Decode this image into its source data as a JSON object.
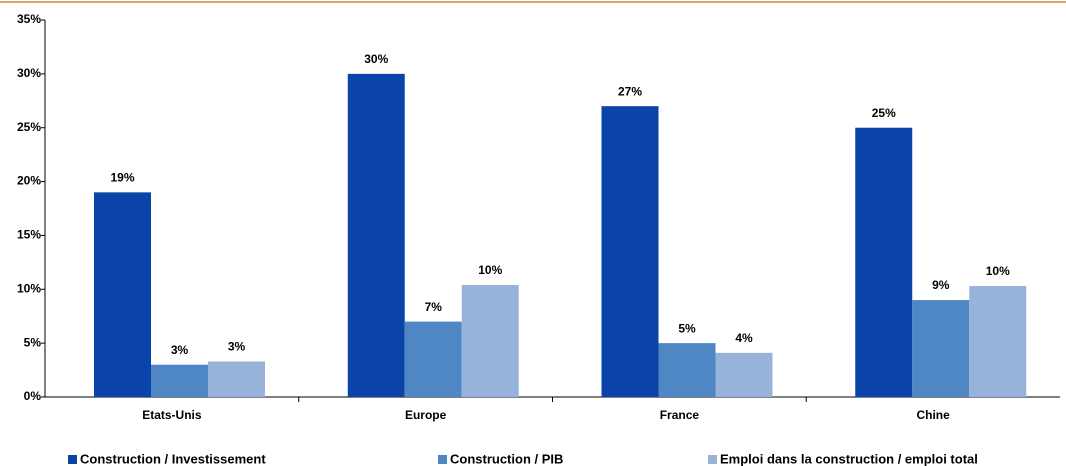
{
  "chart_data": {
    "type": "bar",
    "categories": [
      "Etats-Unis",
      "Europe",
      "France",
      "Chine"
    ],
    "series": [
      {
        "name": "Construction / Investissement",
        "color": "#0a44a8",
        "values": [
          19,
          30,
          27,
          25
        ],
        "value_labels": [
          "19%",
          "30%",
          "27%",
          "25%"
        ]
      },
      {
        "name": "Construction / PIB",
        "color": "#4f86c4",
        "values": [
          3,
          7,
          5,
          9
        ],
        "value_labels": [
          "3%",
          "7%",
          "5%",
          "9%"
        ]
      },
      {
        "name": "Emploi dans la construction / emploi total",
        "color": "#98b3da",
        "values": [
          3.3,
          10.4,
          4.1,
          10.3
        ],
        "value_labels": [
          "3%",
          "10%",
          "4%",
          "10%"
        ]
      }
    ],
    "ylim": [
      0,
      35
    ],
    "yticks": [
      {
        "value": 0,
        "label": "0%"
      },
      {
        "value": 5,
        "label": "5%"
      },
      {
        "value": 10,
        "label": "10%"
      },
      {
        "value": 15,
        "label": "15%"
      },
      {
        "value": 20,
        "label": "20%"
      },
      {
        "value": 25,
        "label": "25%"
      },
      {
        "value": 30,
        "label": "30%"
      },
      {
        "value": 35,
        "label": "35%"
      }
    ],
    "grid": false,
    "legend": "bottom"
  }
}
